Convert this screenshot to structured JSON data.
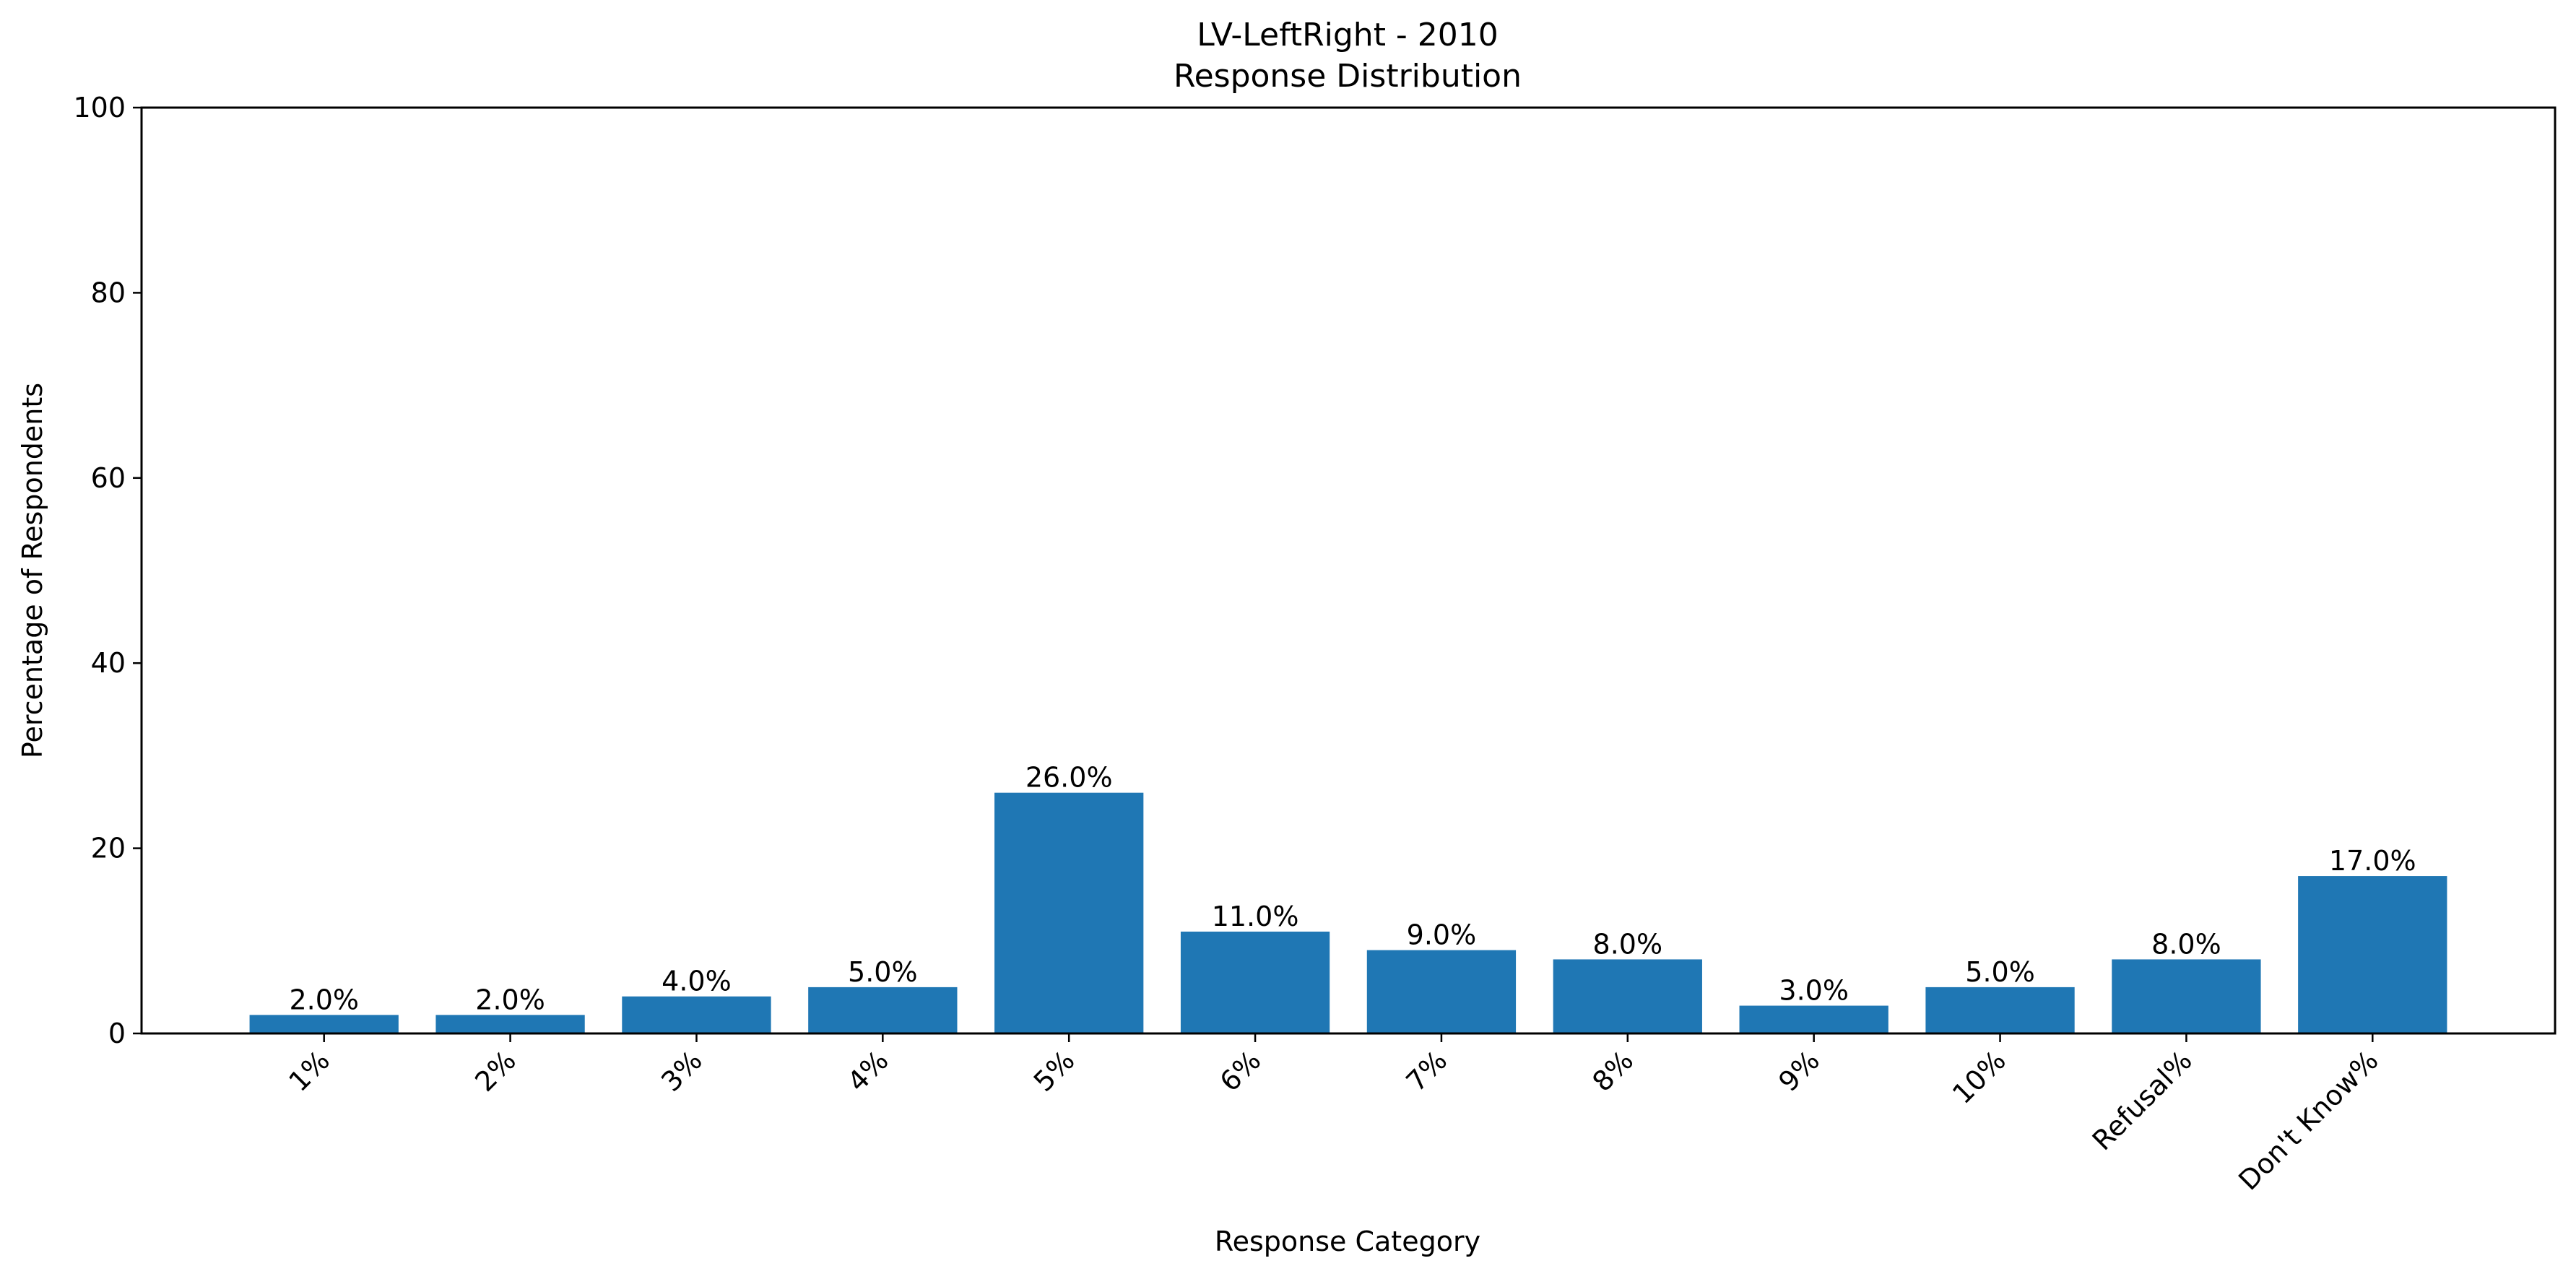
{
  "chart_data": {
    "type": "bar",
    "title": "LV-LeftRight - 2010",
    "subtitle": "Response Distribution",
    "xlabel": "Response Category",
    "ylabel": "Percentage of Respondents",
    "categories": [
      "1%",
      "2%",
      "3%",
      "4%",
      "5%",
      "6%",
      "7%",
      "8%",
      "9%",
      "10%",
      "Refusal%",
      "Don't Know%"
    ],
    "values": [
      2.0,
      2.0,
      4.0,
      5.0,
      26.0,
      11.0,
      9.0,
      8.0,
      3.0,
      5.0,
      8.0,
      17.0
    ],
    "data_labels": [
      "2.0%",
      "2.0%",
      "4.0%",
      "5.0%",
      "26.0%",
      "11.0%",
      "9.0%",
      "8.0%",
      "3.0%",
      "5.0%",
      "8.0%",
      "17.0%"
    ],
    "ylim": [
      0,
      100
    ],
    "yticks": [
      0,
      20,
      40,
      60,
      80,
      100
    ],
    "ytick_labels": [
      "0",
      "20",
      "40",
      "60",
      "80",
      "100"
    ],
    "grid": false,
    "legend": "none",
    "bar_color": "#1f77b4"
  }
}
